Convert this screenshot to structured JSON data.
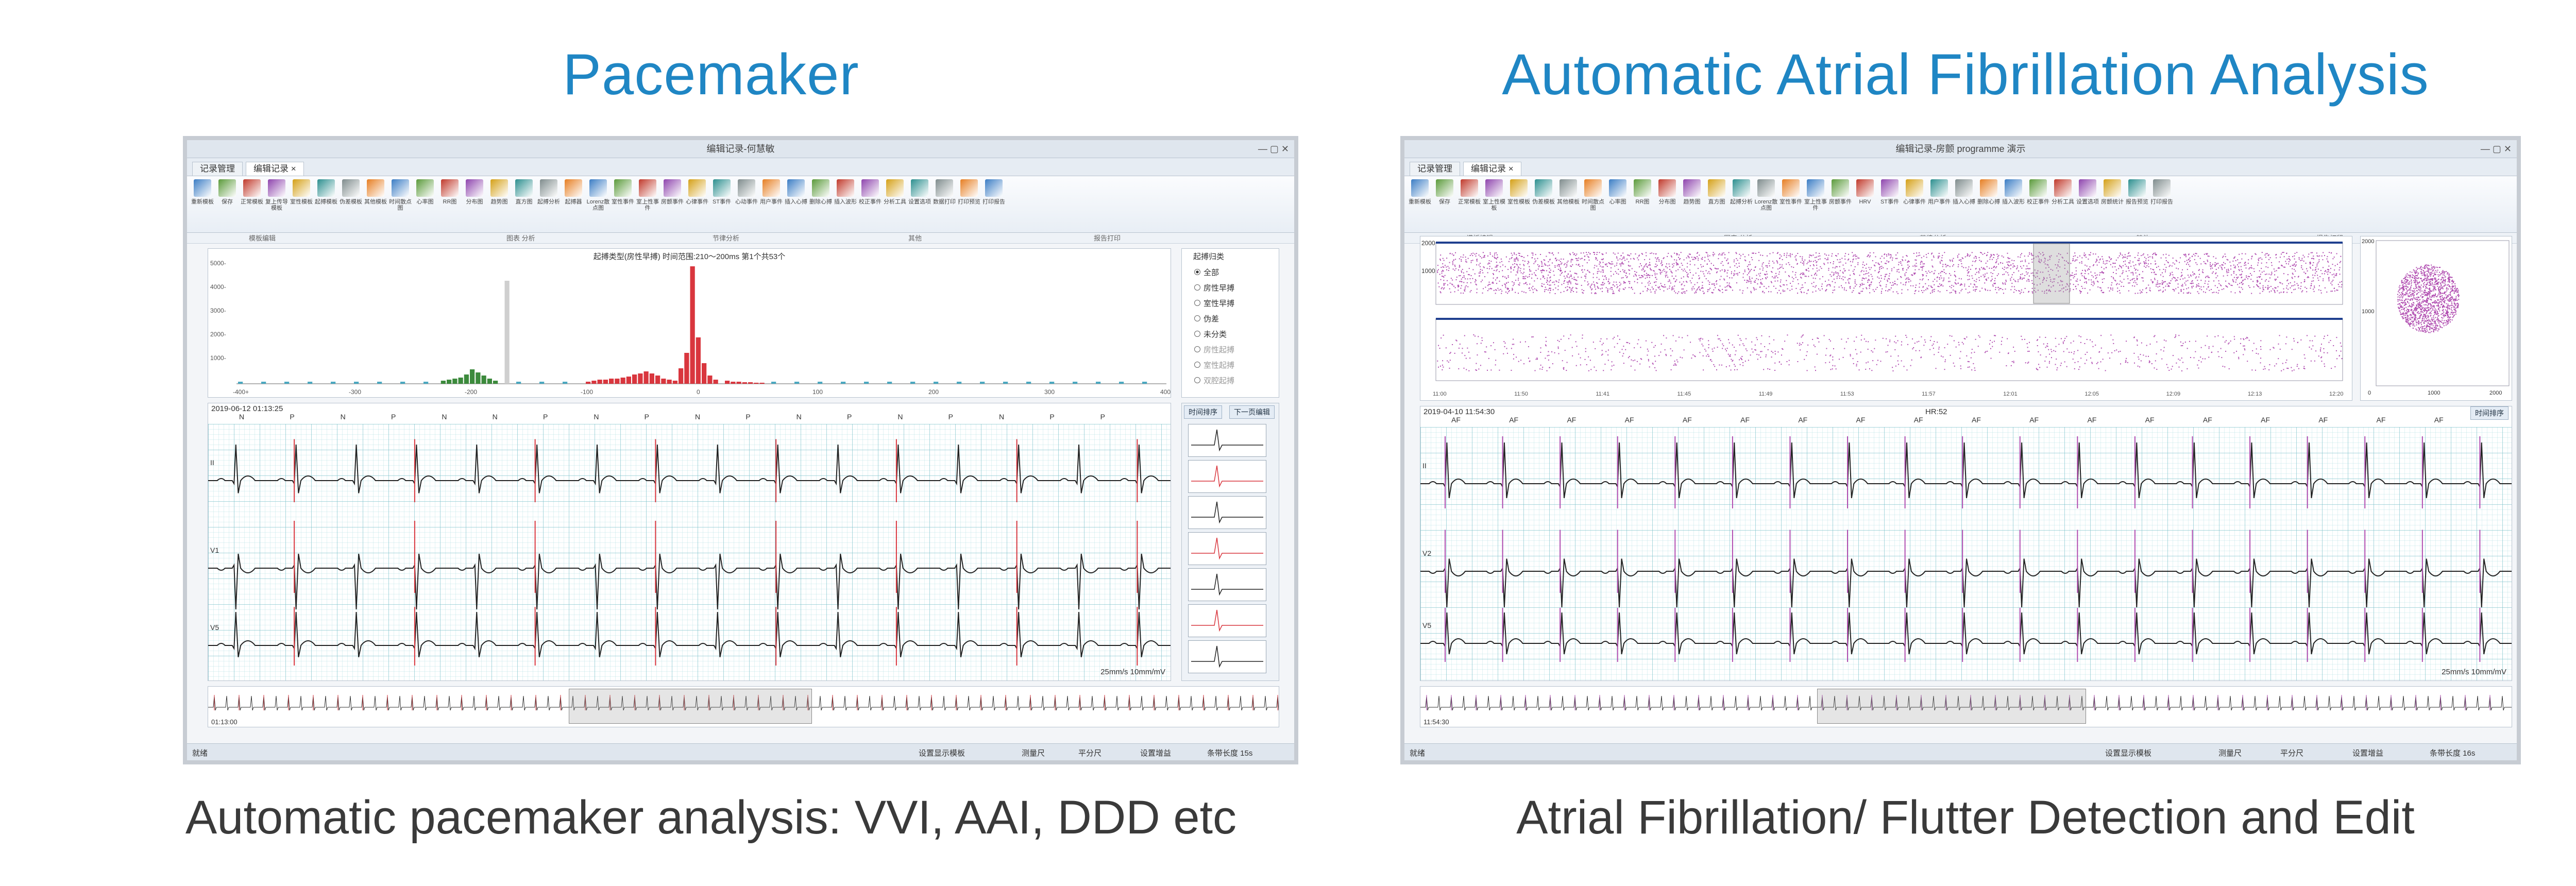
{
  "left": {
    "heading": "Pacemaker",
    "caption": "Automatic pacemaker analysis: VVI, AAI, DDD etc",
    "window": {
      "title": "编辑记录-何慧敏",
      "tabs": [
        "记录管理",
        "编辑记录 ×"
      ],
      "ribbon_groups": [
        "模板编辑",
        "图表 分析",
        "节律分析",
        "其他",
        "报告打印"
      ],
      "ribbon_buttons": [
        "重新模板",
        "保存",
        "正常模板",
        "复上传导模板",
        "室性模板",
        "起搏模板",
        "伪差模板",
        "其他模板",
        "时间散点图",
        "心率图",
        "RR图",
        "分布图",
        "趋势图",
        "直方图",
        "起搏分析",
        "起搏器",
        "Lorenz散点图",
        "室性事件",
        "室上性事件",
        "房颤事件",
        "心律事件",
        "ST事件",
        "心动事件",
        "用户事件",
        "插入心搏",
        "删除心搏",
        "插入波形",
        "校正事件",
        "分析工具",
        "设置选项",
        "数据打印",
        "打印预览",
        "打印报告"
      ],
      "histogram_title": "起搏类型(房性早搏) 时间范围:210～200ms 第1个共53个",
      "histogram_yticks": [
        "5000-",
        "4000-",
        "3000-",
        "2000-",
        "1000-"
      ],
      "histogram_xticks": [
        "-400+",
        "-300",
        "-200",
        "-100",
        "0",
        "100",
        "200",
        "300",
        "400+"
      ],
      "radio_title": "起搏归类",
      "radio_options": [
        "全部",
        "房性早搏",
        "室性早搏",
        "伪差",
        "未分类",
        "房性起搏",
        "室性起搏",
        "双腔起搏"
      ],
      "ecg_timestamp": "2019-06-12 01:13:25",
      "ecg_speed": "25mm/s 10mm/mV",
      "beat_labels": [
        "N",
        "P",
        "N",
        "P",
        "N",
        "N",
        "P",
        "N",
        "P",
        "N",
        "P",
        "N",
        "P",
        "N",
        "P",
        "N",
        "P",
        "P"
      ],
      "lead_labels": [
        "II",
        "V1",
        "V5"
      ],
      "right_buttons": [
        "时间排序",
        "下一页编辑"
      ],
      "overview_time": "01:13:00",
      "status": [
        "就绪",
        "设置显示模板",
        "测量尺",
        "平分尺",
        "设置增益",
        "条带长度 15s"
      ]
    }
  },
  "right": {
    "heading": "Automatic Atrial Fibrillation Analysis",
    "caption": "Atrial Fibrillation/ Flutter Detection and Edit",
    "window": {
      "title": "编辑记录-房颤 programme 演示",
      "tabs": [
        "记录管理",
        "编辑记录 ×"
      ],
      "ribbon_groups": [
        "模板编辑",
        "图表 分析",
        "节律分析",
        "其他",
        "报告打印"
      ],
      "ribbon_buttons": [
        "重新模板",
        "保存",
        "正常模板",
        "室上性模板",
        "室性模板",
        "伪差模板",
        "其他模板",
        "时间散点图",
        "心率图",
        "RR图",
        "分布图",
        "趋势图",
        "直方图",
        "起搏分析",
        "Lorenz散点图",
        "室性事件",
        "室上性事件",
        "房颤事件",
        "HRV",
        "ST事件",
        "心律事件",
        "用户事件",
        "插入心搏",
        "删除心搏",
        "插入波形",
        "校正事件",
        "分析工具",
        "设置选项",
        "房颤统计",
        "报告预览",
        "打印报告"
      ],
      "scatter_yticks_top": [
        "2000",
        "1000"
      ],
      "scatter_xticks": [
        "11:00",
        "11:50",
        "11:41",
        "11:45",
        "11:49",
        "11:53",
        "11:57",
        "12:01",
        "12:05",
        "12:09",
        "12:13",
        "12:20"
      ],
      "lorenz_ticks": [
        "2000",
        "1000",
        "0",
        "1000",
        "2000"
      ],
      "ecg_timestamp": "2019-04-10 11:54:30",
      "ecg_center_label": "HR:52",
      "ecg_speed": "25mm/s 10mm/mV",
      "beat_labels": [
        "AF",
        "AF",
        "AF",
        "AF",
        "AF",
        "AF",
        "AF",
        "AF",
        "AF",
        "AF",
        "AF",
        "AF",
        "AF",
        "AF",
        "AF",
        "AF",
        "AF",
        "AF"
      ],
      "lead_labels": [
        "II",
        "V2",
        "V5"
      ],
      "right_button": "时间排序",
      "overview_time": "11:54:30",
      "status": [
        "就绪",
        "设置显示模板",
        "测量尺",
        "平分尺",
        "设置增益",
        "条带长度 16s"
      ]
    }
  },
  "colors": {
    "heading": "#1f86c4",
    "caption": "#3a3a3a",
    "af_scatter": "#b04cb0",
    "pace_red": "#d9363e",
    "ecg_black": "#222222"
  }
}
